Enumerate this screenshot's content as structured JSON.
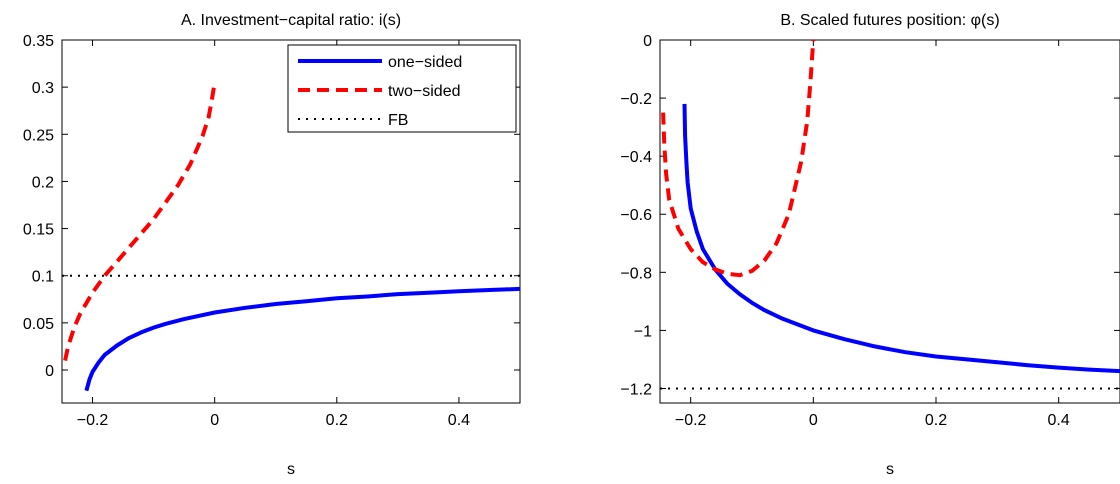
{
  "chart_data": [
    {
      "type": "line",
      "title": "A. Investment−capital ratio: i(s)",
      "xlabel": "s",
      "ylabel": "",
      "xlim": [
        -0.25,
        0.5
      ],
      "ylim": [
        -0.035,
        0.35
      ],
      "xticks": [
        -0.2,
        0,
        0.2,
        0.4
      ],
      "xtick_labels": [
        "−0.2",
        "0",
        "0.2",
        "0.4"
      ],
      "yticks": [
        0,
        0.05,
        0.1,
        0.15,
        0.2,
        0.25,
        0.3,
        0.35
      ],
      "ytick_labels": [
        "0",
        "0.05",
        "0.1",
        "0.15",
        "0.2",
        "0.25",
        "0.3",
        "0.35"
      ],
      "grid": false,
      "legend_position": "top-right",
      "series": [
        {
          "name": "one−sided",
          "color": "#0000ff",
          "style": "solid",
          "x": [
            -0.21,
            -0.205,
            -0.2,
            -0.19,
            -0.18,
            -0.16,
            -0.14,
            -0.12,
            -0.1,
            -0.08,
            -0.05,
            0,
            0.05,
            0.1,
            0.15,
            0.2,
            0.25,
            0.3,
            0.35,
            0.4,
            0.45,
            0.5
          ],
          "y": [
            -0.022,
            -0.01,
            -0.002,
            0.008,
            0.016,
            0.026,
            0.034,
            0.04,
            0.045,
            0.049,
            0.054,
            0.061,
            0.066,
            0.07,
            0.073,
            0.076,
            0.078,
            0.0805,
            0.082,
            0.0835,
            0.0848,
            0.086
          ]
        },
        {
          "name": "two−sided",
          "color": "#ff0000",
          "style": "dashed",
          "x": [
            -0.245,
            -0.24,
            -0.23,
            -0.22,
            -0.2,
            -0.18,
            -0.16,
            -0.14,
            -0.12,
            -0.1,
            -0.08,
            -0.06,
            -0.04,
            -0.02,
            -0.01,
            -0.005,
            0
          ],
          "y": [
            0.01,
            0.025,
            0.045,
            0.06,
            0.082,
            0.1,
            0.115,
            0.13,
            0.145,
            0.16,
            0.178,
            0.196,
            0.218,
            0.248,
            0.268,
            0.285,
            0.305
          ]
        },
        {
          "name": "FB",
          "color": "#000000",
          "style": "dotted",
          "x": [
            -0.25,
            0.5
          ],
          "y": [
            0.1,
            0.1
          ]
        }
      ]
    },
    {
      "type": "line",
      "title": "B. Scaled futures position: φ(s)",
      "xlabel": "s",
      "ylabel": "",
      "xlim": [
        -0.25,
        0.5
      ],
      "ylim": [
        -1.25,
        0
      ],
      "xticks": [
        -0.2,
        0,
        0.2,
        0.4
      ],
      "xtick_labels": [
        "−0.2",
        "0",
        "0.2",
        "0.4"
      ],
      "yticks": [
        0,
        -0.2,
        -0.4,
        -0.6,
        -0.8,
        -1,
        -1.2
      ],
      "ytick_labels": [
        "0",
        "−0.2",
        "−0.4",
        "−0.6",
        "−0.8",
        "−1",
        "−1.2"
      ],
      "grid": false,
      "series": [
        {
          "color": "#0000ff",
          "style": "solid",
          "x": [
            -0.21,
            -0.209,
            -0.207,
            -0.205,
            -0.2,
            -0.19,
            -0.18,
            -0.16,
            -0.14,
            -0.12,
            -0.1,
            -0.08,
            -0.05,
            0,
            0.05,
            0.1,
            0.15,
            0.2,
            0.25,
            0.3,
            0.35,
            0.4,
            0.45,
            0.5
          ],
          "y": [
            -0.22,
            -0.33,
            -0.42,
            -0.49,
            -0.58,
            -0.66,
            -0.72,
            -0.79,
            -0.84,
            -0.875,
            -0.905,
            -0.93,
            -0.96,
            -1.0,
            -1.03,
            -1.055,
            -1.075,
            -1.09,
            -1.1,
            -1.11,
            -1.12,
            -1.128,
            -1.135,
            -1.14
          ]
        },
        {
          "color": "#ff0000",
          "style": "dashed",
          "x": [
            -0.245,
            -0.243,
            -0.24,
            -0.235,
            -0.22,
            -0.2,
            -0.18,
            -0.16,
            -0.14,
            -0.12,
            -0.1,
            -0.08,
            -0.06,
            -0.04,
            -0.02,
            -0.01,
            -0.005,
            0
          ],
          "y": [
            -0.25,
            -0.36,
            -0.46,
            -0.55,
            -0.65,
            -0.72,
            -0.765,
            -0.79,
            -0.805,
            -0.81,
            -0.795,
            -0.76,
            -0.7,
            -0.6,
            -0.42,
            -0.28,
            -0.15,
            0
          ]
        },
        {
          "color": "#000000",
          "style": "dotted",
          "x": [
            -0.25,
            0.5
          ],
          "y": [
            -1.2,
            -1.2
          ]
        }
      ]
    }
  ]
}
